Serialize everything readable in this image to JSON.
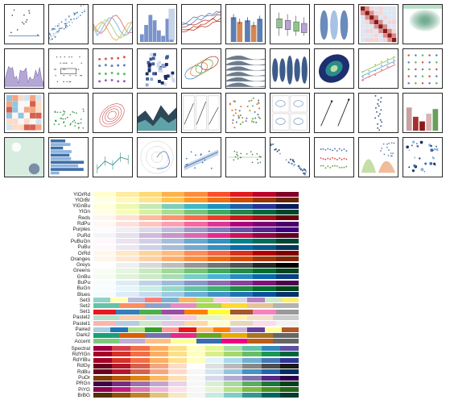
{
  "gallery": {
    "rows": 4,
    "cols": 10,
    "thumbnails": [
      {
        "kind": "scatter-lines"
      },
      {
        "kind": "scatter-blue"
      },
      {
        "kind": "line-bands"
      },
      {
        "kind": "hist"
      },
      {
        "kind": "lines-red"
      },
      {
        "kind": "bars-error"
      },
      {
        "kind": "boxplot"
      },
      {
        "kind": "violin"
      },
      {
        "kind": "heatmap-diag"
      },
      {
        "kind": "kde-green"
      },
      {
        "kind": "area-purple"
      },
      {
        "kind": "strip-box"
      },
      {
        "kind": "dots-colored"
      },
      {
        "kind": "hexbin"
      },
      {
        "kind": "contour-multi"
      },
      {
        "kind": "ridge"
      },
      {
        "kind": "violin-blue"
      },
      {
        "kind": "scatter-density"
      },
      {
        "kind": "regression-multi"
      },
      {
        "kind": "dot-grid"
      },
      {
        "kind": "heatmap-rb"
      },
      {
        "kind": "scatter-green"
      },
      {
        "kind": "kde-contour"
      },
      {
        "kind": "stacked-area"
      },
      {
        "kind": "facet-lines"
      },
      {
        "kind": "scatter-multi"
      },
      {
        "kind": "facet-small"
      },
      {
        "kind": "arrows"
      },
      {
        "kind": "dot-column"
      },
      {
        "kind": "bars-color"
      },
      {
        "kind": "kde-image"
      },
      {
        "kind": "hbars"
      },
      {
        "kind": "errorbar-line"
      },
      {
        "kind": "polar"
      },
      {
        "kind": "reg-ci"
      },
      {
        "kind": "resid"
      },
      {
        "kind": "scatter-hue"
      },
      {
        "kind": "swarm"
      },
      {
        "kind": "pairgrid"
      },
      {
        "kind": "scatter-size"
      }
    ]
  },
  "palettes": {
    "sequential": [
      {
        "name": "YlOrRd",
        "colors": [
          "#ffffcc",
          "#ffeda0",
          "#fed976",
          "#feb24c",
          "#fd8d3c",
          "#fc4e2a",
          "#e31a1c",
          "#bd0026",
          "#800026"
        ]
      },
      {
        "name": "YlOrBr",
        "colors": [
          "#ffffe5",
          "#fff7bc",
          "#fee391",
          "#fec44f",
          "#fe9929",
          "#ec7014",
          "#cc4c02",
          "#993404",
          "#662506"
        ]
      },
      {
        "name": "YlGnBu",
        "colors": [
          "#ffffd9",
          "#edf8b1",
          "#c7e9b4",
          "#7fcdbb",
          "#41b6c4",
          "#1d91c0",
          "#225ea8",
          "#253494",
          "#081d58"
        ]
      },
      {
        "name": "YlGn",
        "colors": [
          "#ffffe5",
          "#f7fcb9",
          "#d9f0a3",
          "#addd8e",
          "#78c679",
          "#41ab5d",
          "#238443",
          "#006837",
          "#004529"
        ]
      },
      {
        "name": "Reds",
        "colors": [
          "#fff5f0",
          "#fee0d2",
          "#fcbba1",
          "#fc9272",
          "#fb6a4a",
          "#ef3b2c",
          "#cb181d",
          "#a50f15",
          "#67000d"
        ]
      },
      {
        "name": "RdPu",
        "colors": [
          "#fff7f3",
          "#fde0dd",
          "#fcc5c0",
          "#fa9fb5",
          "#f768a1",
          "#dd3497",
          "#ae017e",
          "#7a0177",
          "#49006a"
        ]
      },
      {
        "name": "Purples",
        "colors": [
          "#fcfbfd",
          "#efedf5",
          "#dadaeb",
          "#bcbddc",
          "#9e9ac8",
          "#807dba",
          "#6a51a3",
          "#54278f",
          "#3f007d"
        ]
      },
      {
        "name": "PuRd",
        "colors": [
          "#f7f4f9",
          "#e7e1ef",
          "#d4b9da",
          "#c994c7",
          "#df65b0",
          "#e7298a",
          "#ce1256",
          "#980043",
          "#67001f"
        ]
      },
      {
        "name": "PuBuGn",
        "colors": [
          "#fff7fb",
          "#ece2f0",
          "#d0d1e6",
          "#a6bddb",
          "#67a9cf",
          "#3690c0",
          "#02818a",
          "#016c59",
          "#014636"
        ]
      },
      {
        "name": "PuBu",
        "colors": [
          "#fff7fb",
          "#ece7f2",
          "#d0d1e6",
          "#a6bddb",
          "#74a9cf",
          "#3690c0",
          "#0570b0",
          "#045a8d",
          "#023858"
        ]
      },
      {
        "name": "OrRd",
        "colors": [
          "#fff7ec",
          "#fee8c8",
          "#fdd49e",
          "#fdbb84",
          "#fc8d59",
          "#ef6548",
          "#d7301f",
          "#b30000",
          "#7f0000"
        ]
      },
      {
        "name": "Oranges",
        "colors": [
          "#fff5eb",
          "#fee6ce",
          "#fdd0a2",
          "#fdae6b",
          "#fd8d3c",
          "#f16913",
          "#d94801",
          "#a63603",
          "#7f2704"
        ]
      },
      {
        "name": "Greys",
        "colors": [
          "#ffffff",
          "#f0f0f0",
          "#d9d9d9",
          "#bdbdbd",
          "#969696",
          "#737373",
          "#525252",
          "#252525",
          "#000000"
        ]
      },
      {
        "name": "Greens",
        "colors": [
          "#f7fcf5",
          "#e5f5e0",
          "#c7e9c0",
          "#a1d99b",
          "#74c476",
          "#41ab5d",
          "#238b45",
          "#006d2c",
          "#00441b"
        ]
      },
      {
        "name": "GnBu",
        "colors": [
          "#f7fcf0",
          "#e0f3db",
          "#ccebc5",
          "#a8ddb5",
          "#7bccc4",
          "#4eb3d3",
          "#2b8cbe",
          "#0868ac",
          "#084081"
        ]
      },
      {
        "name": "BuPu",
        "colors": [
          "#f7fcfd",
          "#e0ecf4",
          "#bfd3e6",
          "#9ebcda",
          "#8c96c6",
          "#8c6bb1",
          "#88419d",
          "#810f7c",
          "#4d004b"
        ]
      },
      {
        "name": "BuGn",
        "colors": [
          "#f7fcfd",
          "#e5f5f9",
          "#ccece6",
          "#99d8c9",
          "#66c2a4",
          "#41ae76",
          "#238b45",
          "#006d2c",
          "#00441b"
        ]
      },
      {
        "name": "Blues",
        "colors": [
          "#f7fbff",
          "#deebf7",
          "#c6dbef",
          "#9ecae1",
          "#6baed6",
          "#4292c6",
          "#2171b5",
          "#08519c",
          "#08306b"
        ]
      }
    ],
    "qualitative": [
      {
        "name": "Set3",
        "colors": [
          "#8dd3c7",
          "#ffffb3",
          "#bebada",
          "#fb8072",
          "#80b1d3",
          "#fdb462",
          "#b3de69",
          "#fccde5",
          "#d9d9d9",
          "#bc80bd",
          "#ccebc5",
          "#ffed6f"
        ]
      },
      {
        "name": "Set2",
        "colors": [
          "#66c2a5",
          "#fc8d62",
          "#8da0cb",
          "#e78ac3",
          "#a6d854",
          "#ffd92f",
          "#e5c494",
          "#b3b3b3"
        ]
      },
      {
        "name": "Set1",
        "colors": [
          "#e41a1c",
          "#377eb8",
          "#4daf4a",
          "#984ea3",
          "#ff7f00",
          "#ffff33",
          "#a65628",
          "#f781bf",
          "#999999"
        ]
      },
      {
        "name": "Pastel2",
        "colors": [
          "#b3e2cd",
          "#fdcdac",
          "#cbd5e8",
          "#f4cae4",
          "#e6f5c9",
          "#fff2ae",
          "#f1e2cc",
          "#cccccc"
        ]
      },
      {
        "name": "Pastel1",
        "colors": [
          "#fbb4ae",
          "#b3cde3",
          "#ccebc5",
          "#decbe4",
          "#fed9a6",
          "#ffffcc",
          "#e5d8bd",
          "#fddaec",
          "#f2f2f2"
        ]
      },
      {
        "name": "Paired",
        "colors": [
          "#a6cee3",
          "#1f78b4",
          "#b2df8a",
          "#33a02c",
          "#fb9a99",
          "#e31a1c",
          "#fdbf6f",
          "#ff7f00",
          "#cab2d6",
          "#6a3d9a",
          "#ffff99",
          "#b15928"
        ]
      },
      {
        "name": "Dark2",
        "colors": [
          "#1b9e77",
          "#d95f02",
          "#7570b3",
          "#e7298a",
          "#66a61e",
          "#e6ab02",
          "#a6761d",
          "#666666"
        ]
      },
      {
        "name": "Accent",
        "colors": [
          "#7fc97f",
          "#beaed4",
          "#fdc086",
          "#ffff99",
          "#386cb0",
          "#f0027f",
          "#bf5b17",
          "#666666"
        ]
      }
    ],
    "diverging": [
      {
        "name": "Spectral",
        "colors": [
          "#9e0142",
          "#d53e4f",
          "#f46d43",
          "#fdae61",
          "#fee08b",
          "#ffffbf",
          "#e6f598",
          "#abdda4",
          "#66c2a5",
          "#3288bd",
          "#5e4fa2"
        ]
      },
      {
        "name": "RdYlGn",
        "colors": [
          "#a50026",
          "#d73027",
          "#f46d43",
          "#fdae61",
          "#fee08b",
          "#ffffbf",
          "#d9ef8b",
          "#a6d96a",
          "#66bd63",
          "#1a9850",
          "#006837"
        ]
      },
      {
        "name": "RdYlBu",
        "colors": [
          "#a50026",
          "#d73027",
          "#f46d43",
          "#fdae61",
          "#fee090",
          "#ffffbf",
          "#e0f3f8",
          "#abd9e9",
          "#74add1",
          "#4575b4",
          "#313695"
        ]
      },
      {
        "name": "RdGy",
        "colors": [
          "#67001f",
          "#b2182b",
          "#d6604d",
          "#f4a582",
          "#fddbc7",
          "#ffffff",
          "#e0e0e0",
          "#bababa",
          "#878787",
          "#4d4d4d",
          "#1a1a1a"
        ]
      },
      {
        "name": "RdBu",
        "colors": [
          "#67001f",
          "#b2182b",
          "#d6604d",
          "#f4a582",
          "#fddbc7",
          "#f7f7f7",
          "#d1e5f0",
          "#92c5de",
          "#4393c3",
          "#2166ac",
          "#053061"
        ]
      },
      {
        "name": "PuOr",
        "colors": [
          "#7f3b08",
          "#b35806",
          "#e08214",
          "#fdb863",
          "#fee0b6",
          "#f7f7f7",
          "#d8daeb",
          "#b2abd2",
          "#8073ac",
          "#542788",
          "#2d004b"
        ]
      },
      {
        "name": "PRGn",
        "colors": [
          "#40004b",
          "#762a83",
          "#9970ab",
          "#c2a5cf",
          "#e7d4e8",
          "#f7f7f7",
          "#d9f0d3",
          "#a6dba0",
          "#5aae61",
          "#1b7837",
          "#00441b"
        ]
      },
      {
        "name": "PiYG",
        "colors": [
          "#8e0152",
          "#c51b7d",
          "#de77ae",
          "#f1b6da",
          "#fde0ef",
          "#f7f7f7",
          "#e6f5d0",
          "#b8e186",
          "#7fbc41",
          "#4d9221",
          "#276419"
        ]
      },
      {
        "name": "BrBG",
        "colors": [
          "#543005",
          "#8c510a",
          "#bf812d",
          "#dfc27d",
          "#f6e8c3",
          "#f5f5f5",
          "#c7eae5",
          "#80cdc1",
          "#35978f",
          "#01665e",
          "#003c30"
        ]
      }
    ]
  }
}
